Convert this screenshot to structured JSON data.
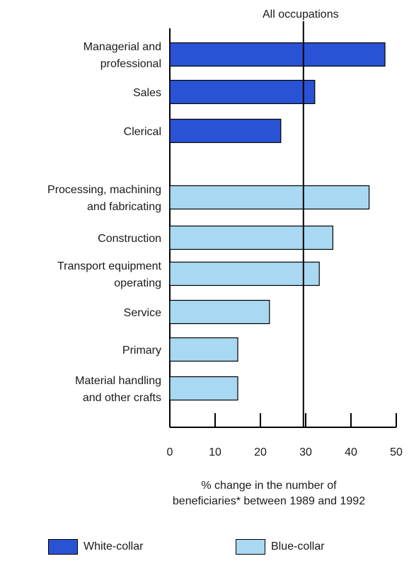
{
  "chart_data": {
    "type": "bar",
    "orientation": "horizontal",
    "categories": [
      {
        "label": [
          "Managerial and",
          "professional"
        ],
        "value": 47.5,
        "group": "white"
      },
      {
        "label": [
          "Sales"
        ],
        "value": 32,
        "group": "white"
      },
      {
        "label": [
          "Clerical"
        ],
        "value": 24.5,
        "group": "white"
      },
      {
        "label": [
          "Processing, machining",
          "and fabricating"
        ],
        "value": 44,
        "group": "blue"
      },
      {
        "label": [
          "Construction"
        ],
        "value": 36,
        "group": "blue"
      },
      {
        "label": [
          "Transport equipment",
          "operating"
        ],
        "value": 33,
        "group": "blue"
      },
      {
        "label": [
          "Service"
        ],
        "value": 22,
        "group": "blue"
      },
      {
        "label": [
          "Primary"
        ],
        "value": 15,
        "group": "blue"
      },
      {
        "label": [
          "Material handling",
          "and other crafts"
        ],
        "value": 15,
        "group": "blue"
      }
    ],
    "xlim": [
      0,
      50
    ],
    "xticks": [
      "0",
      "10",
      "20",
      "30",
      "40",
      "50"
    ],
    "xlabel": [
      "% change in the number of",
      "beneficiaries* between 1989 and 1992"
    ],
    "reference_line": {
      "label": "All occupations",
      "value": 29.5
    },
    "legend": [
      {
        "key": "white",
        "label": "White-collar",
        "color": "#2a52d4"
      },
      {
        "key": "blue",
        "label": "Blue-collar",
        "color": "#a9d8f2"
      }
    ],
    "legend_position": "bottom"
  }
}
